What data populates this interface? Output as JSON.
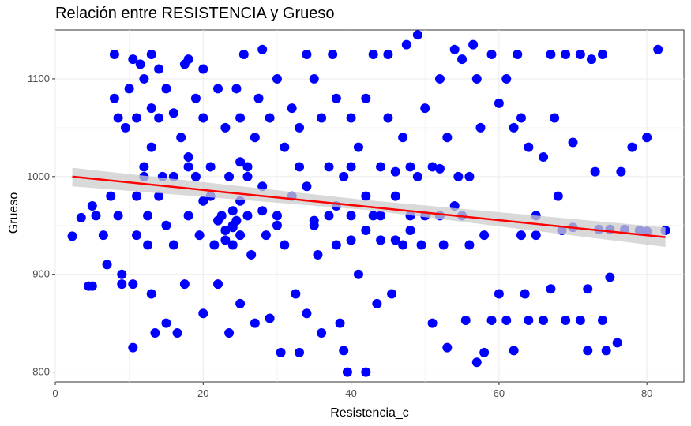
{
  "chart_data": {
    "type": "scatter",
    "title": "Relación entre RESISTENCIA y Grueso",
    "xlabel": "Resistencia_c",
    "ylabel": "Grueso",
    "xlim": [
      0,
      85
    ],
    "ylim": [
      790,
      1150
    ],
    "xticks": [
      0,
      20,
      40,
      60,
      80
    ],
    "yticks": [
      800,
      900,
      1000,
      1100
    ],
    "grid": true,
    "point_color": "#0000ff",
    "trend_color": "#ff0000",
    "band_color": "#cccccc",
    "trend_line": {
      "x": [
        2.3,
        82.5
      ],
      "y": [
        1000,
        938
      ]
    },
    "confidence_band": {
      "x": [
        2.3,
        42,
        82.5
      ],
      "lower": [
        990,
        966,
        928
      ],
      "upper": [
        1009,
        976,
        948
      ]
    },
    "points": [
      [
        2.3,
        939
      ],
      [
        3.5,
        958
      ],
      [
        4.5,
        888
      ],
      [
        5,
        888
      ],
      [
        5,
        970
      ],
      [
        5.5,
        960
      ],
      [
        6.5,
        940
      ],
      [
        7,
        910
      ],
      [
        7.5,
        980
      ],
      [
        8,
        1080
      ],
      [
        8,
        1125
      ],
      [
        8.5,
        1060
      ],
      [
        8.5,
        960
      ],
      [
        9,
        900
      ],
      [
        9,
        890
      ],
      [
        9.5,
        1050
      ],
      [
        10,
        1090
      ],
      [
        10.5,
        1120
      ],
      [
        10.5,
        890
      ],
      [
        10.5,
        825
      ],
      [
        11,
        1060
      ],
      [
        11,
        980
      ],
      [
        11,
        940
      ],
      [
        11.5,
        1115
      ],
      [
        12,
        1100
      ],
      [
        12,
        1010
      ],
      [
        12.5,
        960
      ],
      [
        12.5,
        930
      ],
      [
        13,
        1125
      ],
      [
        13,
        1070
      ],
      [
        13,
        1030
      ],
      [
        13,
        880
      ],
      [
        13.5,
        840
      ],
      [
        14,
        1110
      ],
      [
        14,
        1060
      ],
      [
        14,
        980
      ],
      [
        14.5,
        1000
      ],
      [
        15,
        1090
      ],
      [
        15,
        950
      ],
      [
        15,
        850
      ],
      [
        16,
        1065
      ],
      [
        16,
        1000
      ],
      [
        16,
        930
      ],
      [
        16.5,
        840
      ],
      [
        17,
        1040
      ],
      [
        17.5,
        1115
      ],
      [
        17.5,
        890
      ],
      [
        18,
        1120
      ],
      [
        18,
        1020
      ],
      [
        18,
        960
      ],
      [
        19,
        1080
      ],
      [
        19,
        1000
      ],
      [
        19.5,
        940
      ],
      [
        20,
        1110
      ],
      [
        20,
        1060
      ],
      [
        20,
        860
      ],
      [
        21,
        1010
      ],
      [
        21,
        980
      ],
      [
        21.5,
        930
      ],
      [
        22,
        1090
      ],
      [
        22,
        955
      ],
      [
        22,
        890
      ],
      [
        22.5,
        960
      ],
      [
        23,
        1050
      ],
      [
        23,
        945
      ],
      [
        23,
        935
      ],
      [
        23.5,
        1000
      ],
      [
        23.5,
        840
      ],
      [
        24,
        965
      ],
      [
        24,
        950
      ],
      [
        24,
        948
      ],
      [
        24,
        930
      ],
      [
        24.5,
        1090
      ],
      [
        24.5,
        955
      ],
      [
        25,
        1060
      ],
      [
        25,
        975
      ],
      [
        25,
        940
      ],
      [
        25,
        870
      ],
      [
        25.5,
        1125
      ],
      [
        26,
        1010
      ],
      [
        26,
        960
      ],
      [
        26.5,
        920
      ],
      [
        27,
        1040
      ],
      [
        27,
        850
      ],
      [
        27.5,
        1080
      ],
      [
        28,
        990
      ],
      [
        28,
        1130
      ],
      [
        28.5,
        940
      ],
      [
        29,
        1060
      ],
      [
        29,
        855
      ],
      [
        30,
        1100
      ],
      [
        30,
        960
      ],
      [
        30.5,
        820
      ],
      [
        31,
        1030
      ],
      [
        31,
        930
      ],
      [
        32,
        1070
      ],
      [
        32,
        980
      ],
      [
        32.5,
        880
      ],
      [
        33,
        1050
      ],
      [
        33,
        820
      ],
      [
        34,
        990
      ],
      [
        34,
        1125
      ],
      [
        34,
        860
      ],
      [
        35,
        1100
      ],
      [
        35,
        950
      ],
      [
        35.5,
        920
      ],
      [
        36,
        1060
      ],
      [
        36,
        840
      ],
      [
        37,
        1010
      ],
      [
        37,
        960
      ],
      [
        37.5,
        1125
      ],
      [
        38,
        1080
      ],
      [
        38,
        930
      ],
      [
        38.5,
        850
      ],
      [
        39,
        1000
      ],
      [
        39,
        822
      ],
      [
        39.5,
        800
      ],
      [
        40,
        1060
      ],
      [
        40,
        960
      ],
      [
        40,
        935
      ],
      [
        41,
        1030
      ],
      [
        41,
        900
      ],
      [
        42,
        1080
      ],
      [
        42,
        980
      ],
      [
        42,
        800
      ],
      [
        43,
        1125
      ],
      [
        43,
        960
      ],
      [
        43.5,
        870
      ],
      [
        44,
        1010
      ],
      [
        44,
        935
      ],
      [
        45,
        1060
      ],
      [
        45,
        1125
      ],
      [
        45.5,
        880
      ],
      [
        46,
        980
      ],
      [
        46,
        935
      ],
      [
        47,
        1040
      ],
      [
        47,
        930
      ],
      [
        47.5,
        1135
      ],
      [
        48,
        1010
      ],
      [
        48,
        960
      ],
      [
        49,
        1145
      ],
      [
        49,
        1000
      ],
      [
        49.5,
        930
      ],
      [
        50,
        1070
      ],
      [
        50,
        960
      ],
      [
        51,
        1010
      ],
      [
        51,
        850
      ],
      [
        52,
        1100
      ],
      [
        52,
        960
      ],
      [
        52.5,
        930
      ],
      [
        53,
        1040
      ],
      [
        53,
        825
      ],
      [
        54,
        1130
      ],
      [
        54,
        970
      ],
      [
        54.5,
        1000
      ],
      [
        55,
        1120
      ],
      [
        55,
        960
      ],
      [
        55.5,
        853
      ],
      [
        56,
        1000
      ],
      [
        56,
        930
      ],
      [
        56.5,
        1135
      ],
      [
        57,
        810
      ],
      [
        57,
        1100
      ],
      [
        57.5,
        1050
      ],
      [
        58,
        940
      ],
      [
        58,
        820
      ],
      [
        59,
        1125
      ],
      [
        59,
        853
      ],
      [
        60,
        1075
      ],
      [
        60,
        880
      ],
      [
        61,
        1100
      ],
      [
        61,
        853
      ],
      [
        62,
        1050
      ],
      [
        62,
        822
      ],
      [
        62.5,
        1125
      ],
      [
        63,
        940
      ],
      [
        63,
        1060
      ],
      [
        63.5,
        880
      ],
      [
        64,
        1030
      ],
      [
        64,
        853
      ],
      [
        65,
        960
      ],
      [
        65,
        940
      ],
      [
        66,
        1020
      ],
      [
        66,
        853
      ],
      [
        67,
        1125
      ],
      [
        67,
        885
      ],
      [
        67.5,
        1060
      ],
      [
        68,
        980
      ],
      [
        68.5,
        945
      ],
      [
        69,
        1125
      ],
      [
        69,
        853
      ],
      [
        70,
        1035
      ],
      [
        70,
        948
      ],
      [
        71,
        1125
      ],
      [
        71,
        853
      ],
      [
        72,
        885
      ],
      [
        72,
        822
      ],
      [
        72.5,
        1120
      ],
      [
        73,
        1005
      ],
      [
        73.5,
        946
      ],
      [
        74,
        1125
      ],
      [
        74,
        853
      ],
      [
        74.5,
        822
      ],
      [
        75,
        897
      ],
      [
        75,
        946
      ],
      [
        76,
        830
      ],
      [
        76.5,
        1005
      ],
      [
        77,
        946
      ],
      [
        78,
        1030
      ],
      [
        79,
        945
      ],
      [
        80,
        1040
      ],
      [
        80,
        944
      ],
      [
        81.5,
        1130
      ],
      [
        82.5,
        945
      ],
      [
        12,
        1000
      ],
      [
        18,
        1010
      ],
      [
        26,
        1000
      ],
      [
        33,
        1010
      ],
      [
        40,
        1010
      ],
      [
        46,
        1005
      ],
      [
        52,
        1008
      ],
      [
        30,
        950
      ],
      [
        35,
        955
      ],
      [
        44,
        960
      ],
      [
        48,
        945
      ],
      [
        20,
        975
      ],
      [
        28,
        965
      ],
      [
        38,
        970
      ],
      [
        42,
        945
      ],
      [
        25,
        1015
      ]
    ]
  }
}
